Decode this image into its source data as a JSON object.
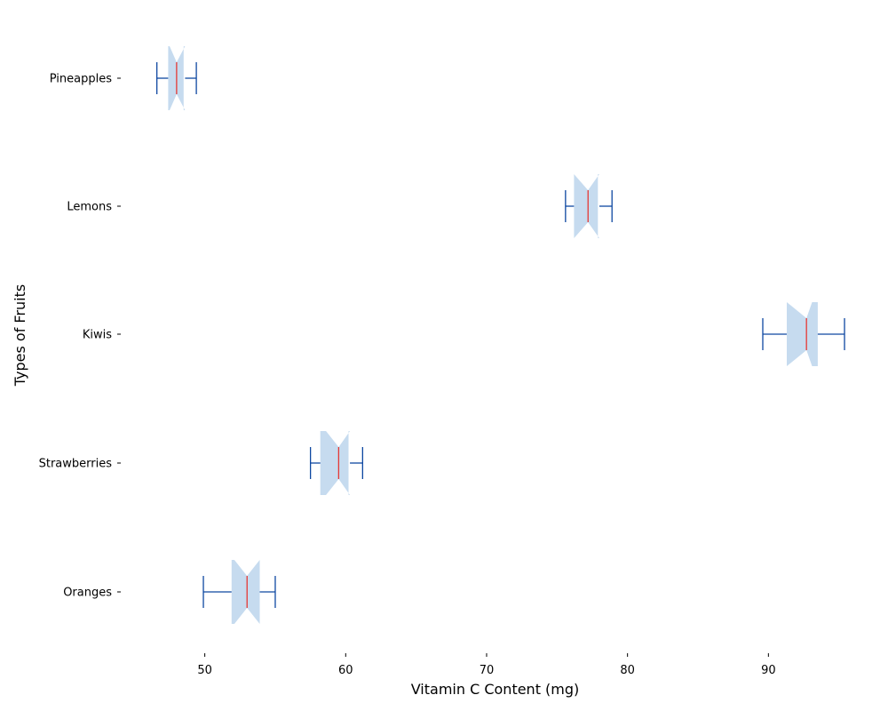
{
  "chart_data": {
    "type": "boxplot",
    "orientation": "horizontal",
    "notched": true,
    "xlabel": "Vitamin C Content (mg)",
    "ylabel": "Types of Fruits",
    "xlim": [
      44.1,
      97.1
    ],
    "x_ticks": [
      50,
      60,
      70,
      80,
      90
    ],
    "grid": false,
    "colors": {
      "box_fill": "#c6dbef",
      "whisker": "#0d47a1",
      "median": "#e53935"
    },
    "categories": [
      "Oranges",
      "Strawberries",
      "Kiwis",
      "Lemons",
      "Pineapples"
    ],
    "series": [
      {
        "category": "Oranges",
        "whisker_low": 49.9,
        "q1": 51.9,
        "median": 53.0,
        "q3": 53.9,
        "whisker_high": 55.0,
        "notch_low": 52.1,
        "notch_high": 53.9
      },
      {
        "category": "Strawberries",
        "whisker_low": 57.5,
        "q1": 58.2,
        "median": 59.5,
        "q3": 60.2,
        "whisker_high": 61.2,
        "notch_low": 58.6,
        "notch_high": 60.3
      },
      {
        "category": "Kiwis",
        "whisker_low": 89.6,
        "q1": 91.3,
        "median": 92.7,
        "q3": 93.5,
        "whisker_high": 95.4,
        "notch_low": 91.3,
        "notch_high": 93.1
      },
      {
        "category": "Lemons",
        "whisker_low": 75.6,
        "q1": 76.2,
        "median": 77.2,
        "q3": 77.9,
        "whisker_high": 78.9,
        "notch_low": 76.2,
        "notch_high": 78.0
      },
      {
        "category": "Pineapples",
        "whisker_low": 46.6,
        "q1": 47.4,
        "median": 48.0,
        "q3": 48.5,
        "whisker_high": 49.4,
        "notch_low": 47.5,
        "notch_high": 48.6
      }
    ]
  }
}
